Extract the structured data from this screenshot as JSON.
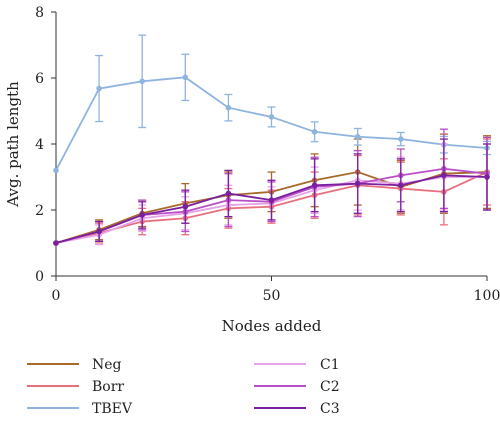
{
  "chart_data": {
    "type": "line",
    "title": "",
    "xlabel": "Nodes added",
    "ylabel": "Avg. path length",
    "xlim": [
      0,
      100
    ],
    "ylim": [
      0,
      8
    ],
    "x_ticks": [
      0,
      50,
      100
    ],
    "y_ticks": [
      0,
      2,
      4,
      6,
      8
    ],
    "grid": false,
    "legend_position": "bottom, two columns",
    "error_bars": true,
    "x": [
      0,
      10,
      20,
      30,
      40,
      50,
      60,
      70,
      80,
      90,
      100
    ],
    "series": [
      {
        "name": "Neg",
        "color": "#a8692b",
        "values": [
          1.0,
          1.4,
          1.9,
          2.2,
          2.45,
          2.55,
          2.9,
          3.15,
          2.7,
          3.1,
          3.15
        ],
        "errors": [
          0.05,
          0.3,
          0.4,
          0.6,
          0.7,
          0.6,
          0.8,
          1.0,
          0.8,
          1.2,
          1.1
        ]
      },
      {
        "name": "Borr",
        "color": "#e8707e",
        "values": [
          1.0,
          1.3,
          1.65,
          1.75,
          2.05,
          2.1,
          2.45,
          2.75,
          2.65,
          2.55,
          3.15
        ],
        "errors": [
          0.05,
          0.3,
          0.4,
          0.5,
          0.6,
          0.5,
          0.7,
          0.9,
          0.8,
          1.0,
          1.0
        ]
      },
      {
        "name": "TBEV",
        "color": "#8fb4df",
        "values": [
          3.2,
          5.68,
          5.9,
          6.02,
          5.1,
          4.82,
          4.37,
          4.22,
          4.15,
          3.98,
          3.88
        ],
        "errors": [
          0.05,
          1.0,
          1.4,
          0.7,
          0.4,
          0.3,
          0.3,
          0.25,
          0.2,
          0.25,
          0.2
        ]
      },
      {
        "name": "C1",
        "color": "#e6a2e6",
        "values": [
          1.0,
          1.25,
          1.75,
          1.9,
          2.15,
          2.2,
          2.6,
          2.9,
          2.8,
          3.0,
          3.0
        ],
        "errors": [
          0.05,
          0.3,
          0.4,
          0.5,
          0.6,
          0.5,
          0.7,
          0.9,
          0.8,
          1.0,
          1.0
        ]
      },
      {
        "name": "C2",
        "color": "#b94fc6",
        "values": [
          1.0,
          1.35,
          1.85,
          1.95,
          2.3,
          2.25,
          2.7,
          2.8,
          3.05,
          3.25,
          3.1
        ],
        "errors": [
          0.05,
          0.3,
          0.45,
          0.6,
          0.8,
          0.6,
          0.9,
          1.0,
          0.8,
          1.2,
          1.1
        ]
      },
      {
        "name": "C3",
        "color": "#7a1f9f",
        "values": [
          1.0,
          1.35,
          1.85,
          2.1,
          2.5,
          2.3,
          2.75,
          2.8,
          2.75,
          3.05,
          3.0
        ],
        "errors": [
          0.05,
          0.3,
          0.4,
          0.5,
          0.7,
          0.6,
          0.8,
          0.9,
          0.8,
          1.1,
          1.0
        ]
      }
    ]
  }
}
